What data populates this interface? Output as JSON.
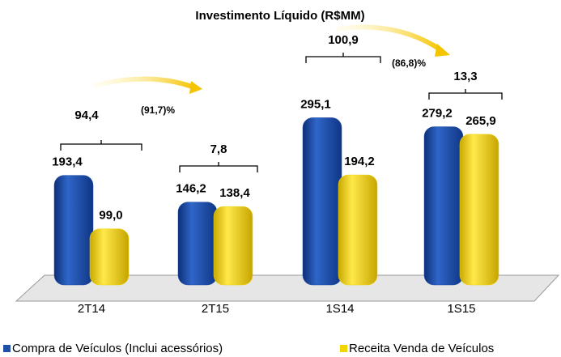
{
  "chart_data": {
    "type": "bar",
    "title": "Investimento Líquido (R$MM)",
    "categories": [
      "2T14",
      "2T15",
      "1S14",
      "1S15"
    ],
    "series": [
      {
        "name": "Compra de Veículos (Inclui acessórios)",
        "color": "#1f4fa8",
        "values": [
          193.4,
          146.2,
          295.1,
          279.2
        ],
        "value_labels": [
          "193,4",
          "146,2",
          "295,1",
          "279,2"
        ]
      },
      {
        "name": "Receita Venda de Veículos",
        "color": "#f2d400",
        "values": [
          99.0,
          138.4,
          194.2,
          265.9
        ],
        "value_labels": [
          "99,0",
          "138,4",
          "194,2",
          "265,9"
        ]
      }
    ],
    "differences": [
      "94,4",
      "7,8",
      "100,9",
      "13,3"
    ],
    "changes": [
      "(91,7)%",
      "(86,8)%"
    ]
  }
}
